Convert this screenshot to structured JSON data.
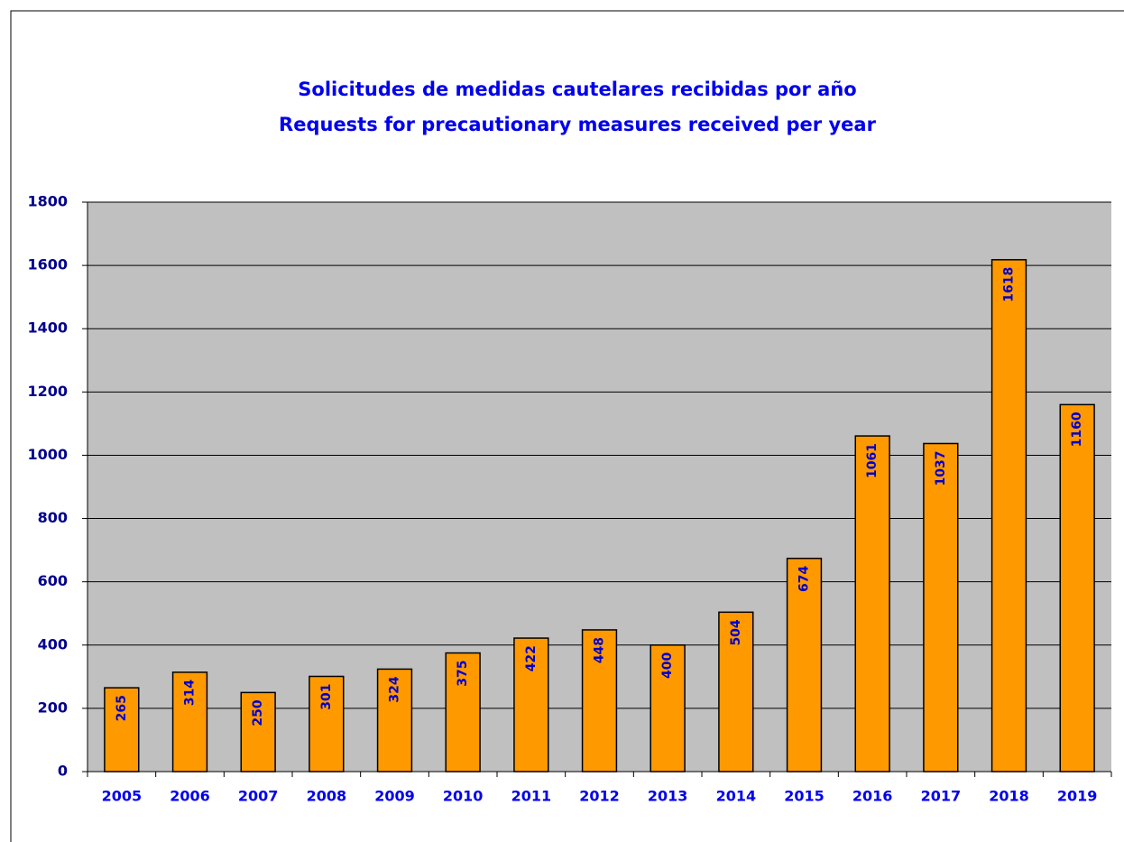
{
  "chart_data": {
    "type": "bar",
    "title": "Solicitudes de medidas cautelares recibidas por año",
    "subtitle": "Requests for precautionary measures received per year",
    "categories": [
      "2005",
      "2006",
      "2007",
      "2008",
      "2009",
      "2010",
      "2011",
      "2012",
      "2013",
      "2014",
      "2015",
      "2016",
      "2017",
      "2018",
      "2019"
    ],
    "values": [
      265,
      314,
      250,
      301,
      324,
      375,
      422,
      448,
      400,
      504,
      674,
      1061,
      1037,
      1618,
      1160
    ],
    "color": "#ff9900",
    "ylim": [
      0,
      1800
    ],
    "yticks": [
      0,
      200,
      400,
      600,
      800,
      1000,
      1200,
      1400,
      1600,
      1800
    ],
    "grid": true
  }
}
